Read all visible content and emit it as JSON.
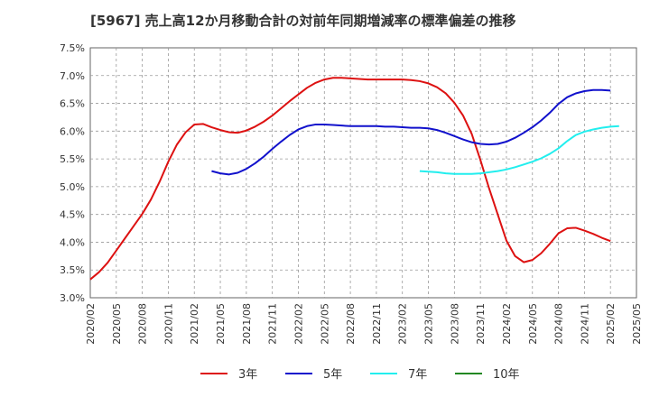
{
  "chart_data": {
    "type": "line",
    "title": "[5967]  売上高12か月移動合計の対前年同期増減率の標準偏差の推移",
    "xlabel": "",
    "ylabel": "",
    "x_ticks": [
      "2020/02",
      "2020/05",
      "2020/08",
      "2020/11",
      "2021/02",
      "2021/05",
      "2021/08",
      "2021/11",
      "2022/02",
      "2022/05",
      "2022/08",
      "2022/11",
      "2023/02",
      "2023/05",
      "2023/08",
      "2023/11",
      "2024/02",
      "2024/05",
      "2024/08",
      "2024/11",
      "2025/02",
      "2025/05"
    ],
    "y_ticks": [
      "3.0%",
      "3.5%",
      "4.0%",
      "4.5%",
      "5.0%",
      "5.5%",
      "6.0%",
      "6.5%",
      "7.0%",
      "7.5%"
    ],
    "ylim": [
      3.0,
      7.5
    ],
    "grid": "dashed",
    "legend_position": "bottom",
    "series": [
      {
        "name": "3年",
        "color": "#dd1111",
        "start": "2020/02",
        "values": [
          3.33,
          3.46,
          3.63,
          3.85,
          4.07,
          4.29,
          4.51,
          4.77,
          5.09,
          5.45,
          5.76,
          5.98,
          6.12,
          6.13,
          6.07,
          6.02,
          5.98,
          5.97,
          6.01,
          6.08,
          6.17,
          6.28,
          6.41,
          6.54,
          6.66,
          6.78,
          6.87,
          6.93,
          6.96,
          6.96,
          6.95,
          6.94,
          6.93,
          6.93,
          6.93,
          6.93,
          6.93,
          6.92,
          6.9,
          6.86,
          6.79,
          6.68,
          6.51,
          6.28,
          5.95,
          5.48,
          4.97,
          4.5,
          4.03,
          3.75,
          3.64,
          3.68,
          3.8,
          3.97,
          4.16,
          4.25,
          4.26,
          4.21,
          4.15,
          4.08,
          4.02
        ]
      },
      {
        "name": "5年",
        "color": "#1111cc",
        "start": "2021/04",
        "values": [
          5.28,
          5.24,
          5.22,
          5.25,
          5.32,
          5.42,
          5.54,
          5.68,
          5.81,
          5.93,
          6.03,
          6.09,
          6.12,
          6.12,
          6.11,
          6.1,
          6.09,
          6.09,
          6.09,
          6.09,
          6.08,
          6.08,
          6.07,
          6.06,
          6.06,
          6.05,
          6.02,
          5.97,
          5.91,
          5.85,
          5.8,
          5.77,
          5.76,
          5.77,
          5.81,
          5.88,
          5.97,
          6.07,
          6.19,
          6.33,
          6.49,
          6.61,
          6.68,
          6.72,
          6.74,
          6.74,
          6.73
        ]
      },
      {
        "name": "7年",
        "color": "#22eeee",
        "start": "2023/04",
        "values": [
          5.28,
          5.27,
          5.26,
          5.24,
          5.23,
          5.23,
          5.23,
          5.24,
          5.26,
          5.28,
          5.31,
          5.35,
          5.4,
          5.45,
          5.51,
          5.59,
          5.69,
          5.82,
          5.93,
          5.99,
          6.03,
          6.06,
          6.08,
          6.09
        ]
      },
      {
        "name": "10年",
        "color": "#228822",
        "start": "",
        "values": []
      }
    ]
  }
}
